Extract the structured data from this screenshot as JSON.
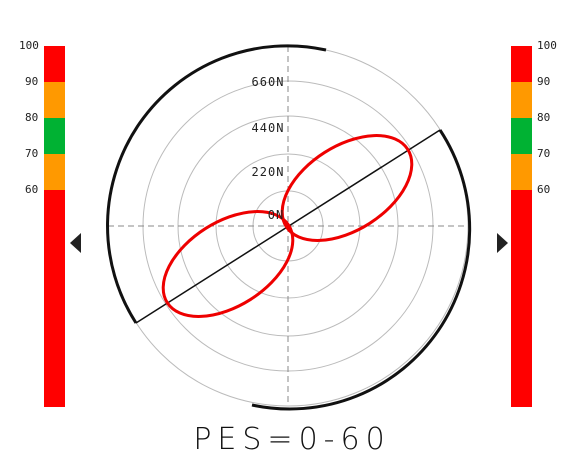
{
  "left_gauge": {
    "labels": [
      "100",
      "90",
      "80",
      "70",
      "60"
    ]
  },
  "right_gauge": {
    "labels": [
      "100",
      "90",
      "80",
      "70",
      "60"
    ]
  },
  "polar": {
    "ring_labels": [
      "0N",
      "220N",
      "440N",
      "660N"
    ]
  },
  "footer": "PES=0-60"
}
